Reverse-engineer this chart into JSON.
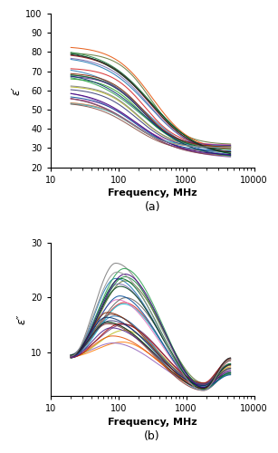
{
  "freq_start": 20,
  "freq_end": 4500,
  "n_curves": 30,
  "subplot_a": {
    "ylabel": "ε′",
    "xlabel": "Frequency, MHz",
    "label": "(a)",
    "ylim": [
      20,
      100
    ],
    "yticks": [
      20,
      30,
      40,
      50,
      60,
      70,
      80,
      90,
      100
    ],
    "xlim_log": [
      10,
      10000
    ],
    "start_values_min": 53,
    "start_values_max": 85,
    "end_values_min": 24,
    "end_values_max": 32
  },
  "subplot_b": {
    "ylabel": "ε″",
    "xlabel": "Frequency, MHz",
    "label": "(b)",
    "ylim": [
      2,
      30
    ],
    "yticks": [
      10,
      20,
      30
    ],
    "xlim_log": [
      10,
      10000
    ],
    "start_val": 9.3,
    "peak_values_min": 11,
    "peak_values_max": 27,
    "peak_freq_min": 60,
    "peak_freq_max": 130,
    "min_val_min": 3.0,
    "min_val_max": 4.5,
    "min_freq": 1800,
    "end_values_min": 5.5,
    "end_values_max": 9.0
  },
  "colors": [
    "#1f77b4",
    "#d62728",
    "#2ca02c",
    "#ff7f0e",
    "#9467bd",
    "#17becf",
    "#e377c2",
    "#8c564b",
    "#bcbd22",
    "#7f7f7f",
    "#393b79",
    "#843c39",
    "#637939",
    "#7b4173",
    "#3182bd",
    "#e6550d",
    "#31a354",
    "#756bb1",
    "#636363",
    "#006d2c",
    "#08519c",
    "#a50f15",
    "#238b45",
    "#54278f",
    "#08306b",
    "#7f2704",
    "#00441b",
    "#3f007d",
    "#252525",
    "#969696"
  ]
}
